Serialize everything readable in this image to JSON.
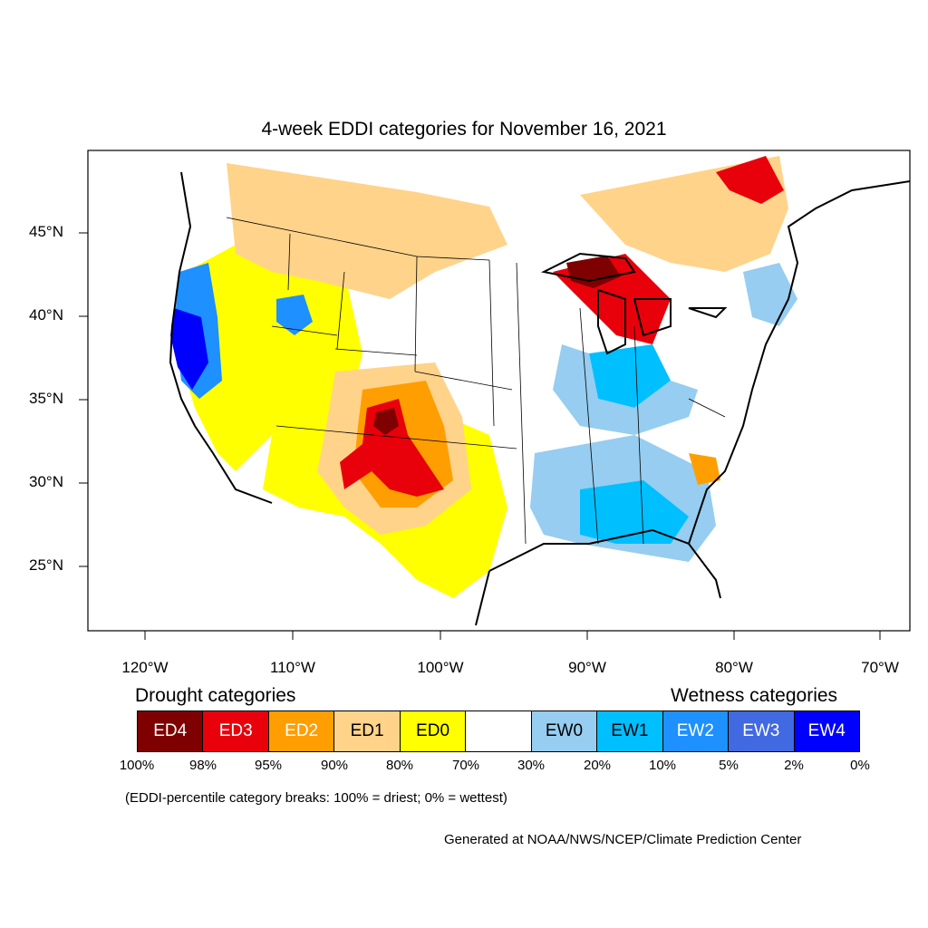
{
  "title": "4-week EDDI categories for November 16, 2021",
  "axes": {
    "lon_ticks": [
      "120°W",
      "110°W",
      "100°W",
      "90°W",
      "80°W",
      "70°W"
    ],
    "lat_ticks": [
      "45°N",
      "40°N",
      "35°N",
      "30°N",
      "25°N"
    ]
  },
  "map": {
    "land_color": "#ffffff",
    "border_color": "#000000",
    "regions": [
      {
        "name": "Northern Plains / Montana",
        "category": "ED1"
      },
      {
        "name": "Southern High Plains",
        "category": "ED3"
      },
      {
        "name": "Upper Michigan / Lake Superior",
        "category": "ED4"
      },
      {
        "name": "California coast",
        "category": "EW4"
      },
      {
        "name": "Gulf Coast",
        "category": "EW1"
      },
      {
        "name": "Ohio Valley",
        "category": "EW1"
      }
    ]
  },
  "legend": {
    "drought_heading": "Drought categories",
    "wetness_heading": "Wetness categories",
    "categories": [
      {
        "label": "ED4",
        "color": "#7f0000",
        "text_color": "#ffffff"
      },
      {
        "label": "ED3",
        "color": "#e8000b",
        "text_color": "#ffffff"
      },
      {
        "label": "ED2",
        "color": "#ff9e00",
        "text_color": "#ffffff"
      },
      {
        "label": "ED1",
        "color": "#ffd38a",
        "text_color": "#000000"
      },
      {
        "label": "ED0",
        "color": "#ffff00",
        "text_color": "#000000"
      },
      {
        "label": "",
        "color": "#ffffff",
        "text_color": "#000000"
      },
      {
        "label": "EW0",
        "color": "#96cdf0",
        "text_color": "#000000"
      },
      {
        "label": "EW1",
        "color": "#00bfff",
        "text_color": "#000000"
      },
      {
        "label": "EW2",
        "color": "#1e90ff",
        "text_color": "#ffffff"
      },
      {
        "label": "EW3",
        "color": "#4169e1",
        "text_color": "#ffffff"
      },
      {
        "label": "EW4",
        "color": "#0000ff",
        "text_color": "#ffffff"
      }
    ],
    "percentiles": [
      "100%",
      "98%",
      "95%",
      "90%",
      "80%",
      "70%",
      "30%",
      "20%",
      "10%",
      "5%",
      "2%",
      "0%"
    ]
  },
  "breaks_note": "(EDDI-percentile category breaks: 100% = driest; 0% = wettest)",
  "credit": "Generated at NOAA/NWS/NCEP/Climate Prediction Center"
}
